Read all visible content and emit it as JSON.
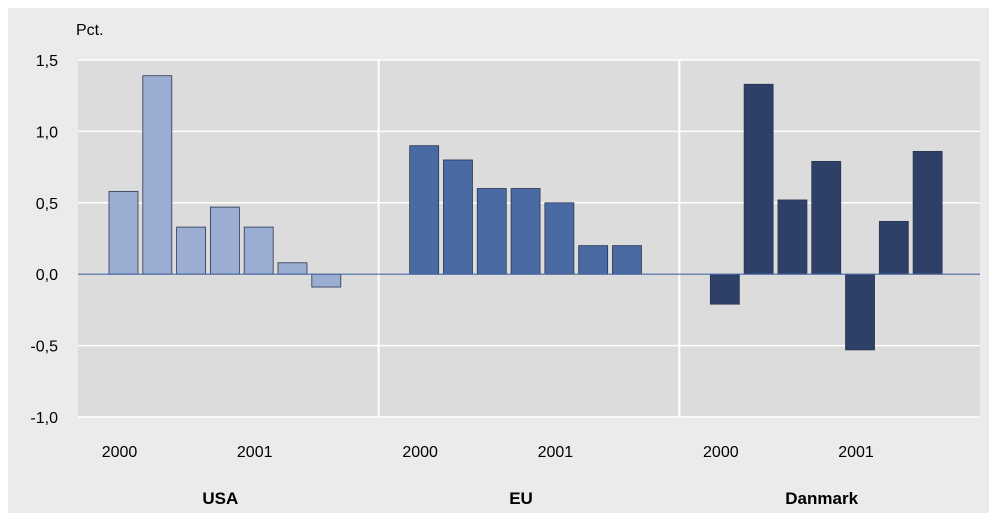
{
  "chart_data": {
    "type": "bar",
    "unit_label": "Pct.",
    "ylim": [
      -1.0,
      1.5
    ],
    "yticks": [
      1.5,
      1.0,
      0.5,
      0.0,
      -0.5,
      -1.0
    ],
    "ytick_labels": [
      "1,5",
      "1,0",
      "0,5",
      "0,0",
      "-0,5",
      "-1,0"
    ],
    "grid": true,
    "panels": [
      {
        "name": "USA",
        "color": "#9badd3",
        "year_labels": [
          "2000",
          "2001"
        ],
        "values": [
          0.58,
          1.39,
          0.33,
          0.47,
          0.33,
          0.08,
          -0.09
        ]
      },
      {
        "name": "EU",
        "color": "#4a6aa4",
        "year_labels": [
          "2000",
          "2001"
        ],
        "values": [
          0.9,
          0.8,
          0.6,
          0.6,
          0.5,
          0.2,
          0.2
        ]
      },
      {
        "name": "Danmark",
        "color": "#2f4068",
        "year_labels": [
          "2000",
          "2001"
        ],
        "values": [
          -0.21,
          1.33,
          0.52,
          0.79,
          -0.53,
          0.37,
          0.86
        ]
      }
    ]
  }
}
